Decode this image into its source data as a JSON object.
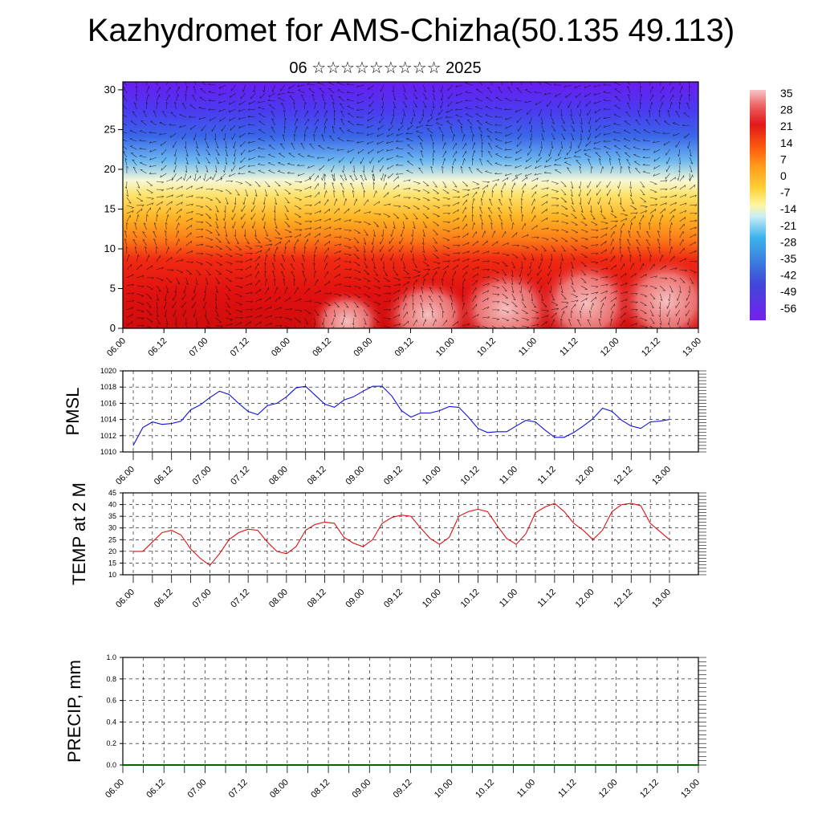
{
  "page": {
    "title": "Kazhydromet for AMS-Chizha(50.135 49.113)",
    "subtitle": "06 ☆☆☆☆☆☆☆☆☆ 2025"
  },
  "chart_data": [
    {
      "type": "heatmap",
      "xlabel": "",
      "ylabel": "",
      "x_ticks": [
        "06.00",
        "06.12",
        "07.00",
        "07.12",
        "08.00",
        "08.12",
        "09.00",
        "09.12",
        "10.00",
        "10.12",
        "11.00",
        "11.12",
        "12.00",
        "12.12",
        "13.00"
      ],
      "ylim": [
        0,
        31
      ],
      "y_ticks": [
        0,
        5,
        10,
        15,
        20,
        25,
        30
      ],
      "colorbar_labels": [
        "35",
        "28",
        "21",
        "14",
        "7",
        "0",
        "-7",
        "-14",
        "-21",
        "-28",
        "-35",
        "-42",
        "-49",
        "-56"
      ],
      "colorbar_range": [
        -60,
        40
      ],
      "overlay": "wind vectors"
    },
    {
      "type": "line",
      "ylabel": "PMSL",
      "x_ticks": [
        "06.00",
        "06.12",
        "07.00",
        "07.12",
        "08.00",
        "08.12",
        "09.00",
        "09.12",
        "10.00",
        "10.12",
        "11.00",
        "11.12",
        "12.00",
        "12.12",
        "13.00"
      ],
      "ylim": [
        1010,
        1020
      ],
      "y_ticks": [
        "1010",
        "1012",
        "1014",
        "1016",
        "1018",
        "1020"
      ],
      "series": [
        {
          "color": "#1010dd",
          "values": [
            1010.8,
            1013.0,
            1013.7,
            1013.4,
            1013.5,
            1013.8,
            1015.2,
            1015.8,
            1016.7,
            1017.5,
            1017.1,
            1016.0,
            1015.0,
            1014.6,
            1015.7,
            1016.0,
            1016.8,
            1017.9,
            1018.1,
            1017.0,
            1015.9,
            1015.5,
            1016.4,
            1016.8,
            1017.5,
            1018.1,
            1018.1,
            1016.9,
            1015.1,
            1014.3,
            1014.8,
            1014.8,
            1015.1,
            1015.6,
            1015.5,
            1014.3,
            1012.9,
            1012.4,
            1012.5,
            1012.5,
            1013.2,
            1013.9,
            1013.7,
            1012.7,
            1011.8,
            1011.8,
            1012.4,
            1013.2,
            1014.1,
            1015.4,
            1015.0,
            1013.9,
            1013.2,
            1012.9,
            1013.7,
            1013.8,
            1014.0
          ]
        }
      ]
    },
    {
      "type": "line",
      "ylabel": "TEMP at 2 M",
      "x_ticks": [
        "06.00",
        "06.12",
        "07.00",
        "07.12",
        "08.00",
        "08.12",
        "09.00",
        "09.12",
        "10.00",
        "10.12",
        "11.00",
        "11.12",
        "12.00",
        "12.12",
        "13.00"
      ],
      "ylim": [
        10,
        45
      ],
      "y_ticks": [
        "10",
        "15",
        "20",
        "25",
        "30",
        "35",
        "40",
        "45"
      ],
      "series": [
        {
          "color": "#dd1010",
          "values": [
            20,
            20,
            24,
            28,
            29,
            27,
            21,
            17,
            14,
            19,
            25,
            28,
            29.5,
            29,
            24,
            20,
            19,
            22,
            29,
            31.5,
            32.5,
            32,
            26,
            23.5,
            22,
            25,
            32,
            34.5,
            35.5,
            35,
            30,
            25.5,
            23,
            26,
            35,
            37,
            38,
            37,
            31,
            25.5,
            23,
            27.5,
            36.5,
            39,
            40.5,
            37,
            32,
            29,
            25,
            29,
            37,
            40,
            40.5,
            39.5,
            32,
            28.5,
            25
          ]
        }
      ]
    },
    {
      "type": "line",
      "ylabel": "PRECIP, mm",
      "x_ticks": [
        "06.00",
        "06.12",
        "07.00",
        "07.12",
        "08.00",
        "08.12",
        "09.00",
        "09.12",
        "10.00",
        "10.12",
        "11.00",
        "11.12",
        "12.00",
        "12.12",
        "13.00"
      ],
      "ylim": [
        0.0,
        1.0
      ],
      "y_ticks": [
        "0.0",
        "0.2",
        "0.4",
        "0.6",
        "0.8",
        "1.0"
      ],
      "series": [
        {
          "color": "#006400",
          "values": [
            0,
            0,
            0,
            0,
            0,
            0,
            0,
            0,
            0,
            0,
            0,
            0,
            0,
            0,
            0,
            0,
            0,
            0,
            0,
            0,
            0,
            0,
            0,
            0,
            0,
            0,
            0,
            0,
            0,
            0,
            0,
            0,
            0,
            0,
            0,
            0,
            0,
            0,
            0,
            0,
            0,
            0,
            0,
            0,
            0,
            0,
            0,
            0,
            0,
            0,
            0,
            0,
            0,
            0,
            0,
            0,
            0
          ]
        }
      ]
    }
  ]
}
